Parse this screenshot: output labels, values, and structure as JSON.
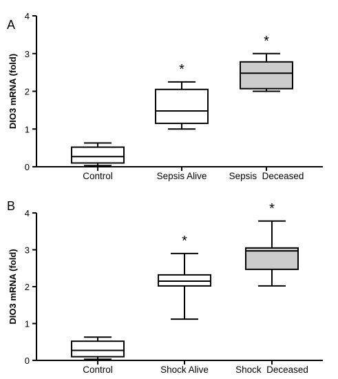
{
  "chart_data": [
    {
      "type": "box",
      "panel_label": "A",
      "ylabel": "DIO3 mRNA (fold)",
      "ylim": [
        0,
        4
      ],
      "yticks": [
        0,
        1,
        2,
        3,
        4
      ],
      "categories": [
        "Control",
        "Sepsis Alive",
        "Sepsis  Deceased"
      ],
      "boxes": [
        {
          "whisker_low": 0.03,
          "q1": 0.1,
          "median": 0.27,
          "q3": 0.52,
          "whisker_high": 0.63,
          "fill": "#ffffff",
          "annotation": ""
        },
        {
          "whisker_low": 1.0,
          "q1": 1.15,
          "median": 1.48,
          "q3": 2.05,
          "whisker_high": 2.25,
          "fill": "#ffffff",
          "annotation": "*"
        },
        {
          "whisker_low": 2.0,
          "q1": 2.07,
          "median": 2.48,
          "q3": 2.78,
          "whisker_high": 3.0,
          "fill": "#cccccc",
          "annotation": "*"
        }
      ]
    },
    {
      "type": "box",
      "panel_label": "B",
      "ylabel": "DIO3 mRNA (fold)",
      "ylim": [
        0,
        4
      ],
      "yticks": [
        0,
        1,
        2,
        3,
        4
      ],
      "categories": [
        "Control",
        "Shock Alive",
        "Shock  Deceased"
      ],
      "boxes": [
        {
          "whisker_low": 0.03,
          "q1": 0.1,
          "median": 0.27,
          "q3": 0.52,
          "whisker_high": 0.63,
          "fill": "#ffffff",
          "annotation": ""
        },
        {
          "whisker_low": 1.12,
          "q1": 2.02,
          "median": 2.15,
          "q3": 2.32,
          "whisker_high": 2.9,
          "fill": "#ffffff",
          "annotation": "*"
        },
        {
          "whisker_low": 2.02,
          "q1": 2.47,
          "median": 2.97,
          "q3": 3.05,
          "whisker_high": 3.78,
          "fill": "#cccccc",
          "annotation": "*"
        }
      ]
    }
  ]
}
